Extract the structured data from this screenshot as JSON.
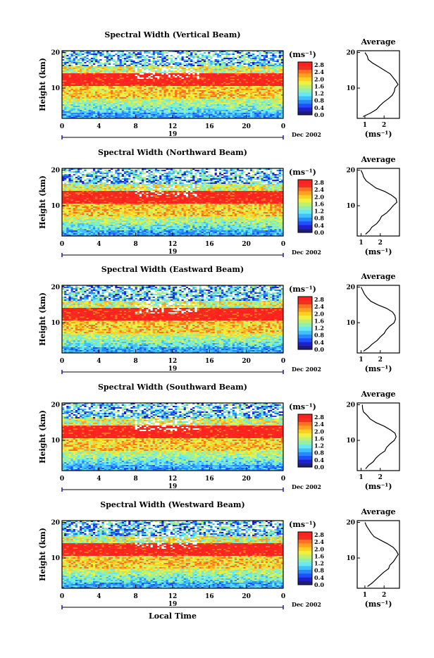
{
  "colorbar": {
    "unit_label": "(ms⁻¹)",
    "ticks": [
      "2.8",
      "2.4",
      "2.0",
      "1.6",
      "1.2",
      "0.8",
      "0.4",
      "0.0"
    ],
    "colors": [
      "#1e1e78",
      "#2020c8",
      "#1e50ff",
      "#2888ff",
      "#40c0ff",
      "#68e8f0",
      "#90f0b0",
      "#c0f070",
      "#f0f040",
      "#ffd020",
      "#ffa020",
      "#ff7020",
      "#f03020",
      "#ff2020"
    ]
  },
  "x_axis": {
    "ticks": [
      "0",
      "4",
      "8",
      "12",
      "16",
      "20",
      "0"
    ],
    "day_label": "19",
    "month_label": "Dec 2002",
    "xlabel": "Local Time"
  },
  "y_axis": {
    "ylabel": "Height (km)",
    "ticks": [
      "20",
      "10"
    ]
  },
  "profile": {
    "title": "Average",
    "xlabel": "(ms⁻¹)",
    "x_ticks": [
      "1",
      "2"
    ],
    "y_ticks": [
      "20",
      "10"
    ]
  },
  "chart_data": [
    {
      "type": "heatmap",
      "title": "Spectral Width (Vertical Beam)",
      "xlim": [
        0,
        24
      ],
      "ylim": [
        1.5,
        20.5
      ],
      "profile": {
        "type": "line",
        "xlim": [
          0.6,
          2.8
        ],
        "ylim": [
          1.5,
          20.5
        ],
        "y": [
          2,
          3,
          4,
          5,
          6,
          7,
          8,
          9,
          10,
          11,
          12,
          13,
          14,
          15,
          16,
          17,
          18,
          19,
          20
        ],
        "x": [
          0.9,
          1.3,
          1.6,
          1.8,
          2.0,
          2.2,
          2.4,
          2.5,
          2.6,
          2.7,
          2.65,
          2.5,
          2.3,
          2.0,
          1.7,
          1.4,
          1.2,
          1.1,
          1.0
        ]
      }
    },
    {
      "type": "heatmap",
      "title": "Spectral Width (Northward Beam)",
      "xlim": [
        0,
        24
      ],
      "ylim": [
        1.5,
        20.5
      ],
      "profile": {
        "type": "line",
        "xlim": [
          0.8,
          3.0
        ],
        "ylim": [
          1.5,
          20.5
        ],
        "y": [
          2,
          3,
          4,
          5,
          6,
          7,
          8,
          9,
          10,
          11,
          12,
          13,
          14,
          15,
          16,
          17,
          18,
          19,
          20
        ],
        "x": [
          1.2,
          1.4,
          1.6,
          1.8,
          2.0,
          2.1,
          2.3,
          2.5,
          2.7,
          2.85,
          2.8,
          2.6,
          2.2,
          1.8,
          1.5,
          1.3,
          1.15,
          1.1,
          1.0
        ]
      }
    },
    {
      "type": "heatmap",
      "title": "Spectral Width (Eastward Beam)",
      "xlim": [
        0,
        24
      ],
      "ylim": [
        1.5,
        20.5
      ],
      "profile": {
        "type": "line",
        "xlim": [
          0.8,
          3.0
        ],
        "ylim": [
          1.5,
          20.5
        ],
        "y": [
          2,
          3,
          4,
          5,
          6,
          7,
          8,
          9,
          10,
          11,
          12,
          13,
          14,
          15,
          16,
          17,
          18,
          19,
          20
        ],
        "x": [
          1.1,
          1.4,
          1.6,
          1.8,
          2.0,
          2.2,
          2.3,
          2.5,
          2.7,
          2.8,
          2.75,
          2.6,
          2.3,
          1.9,
          1.5,
          1.3,
          1.15,
          1.1,
          1.0
        ]
      }
    },
    {
      "type": "heatmap",
      "title": "Spectral Width (Southward Beam)",
      "xlim": [
        0,
        24
      ],
      "ylim": [
        1.5,
        20.5
      ],
      "profile": {
        "type": "line",
        "xlim": [
          0.8,
          3.0
        ],
        "ylim": [
          1.5,
          20.5
        ],
        "y": [
          2,
          3,
          4,
          5,
          6,
          7,
          8,
          9,
          10,
          11,
          12,
          13,
          14,
          15,
          16,
          17,
          18,
          19,
          20
        ],
        "x": [
          1.2,
          1.4,
          1.6,
          1.8,
          2.0,
          2.2,
          2.3,
          2.5,
          2.7,
          2.8,
          2.75,
          2.55,
          2.2,
          1.8,
          1.5,
          1.3,
          1.15,
          1.1,
          1.05
        ]
      }
    },
    {
      "type": "heatmap",
      "title": "Spectral Width (Westward Beam)",
      "xlim": [
        0,
        24
      ],
      "ylim": [
        1.5,
        20.5
      ],
      "profile": {
        "type": "line",
        "xlim": [
          0.6,
          2.8
        ],
        "ylim": [
          1.5,
          20.5
        ],
        "y": [
          2,
          3,
          4,
          5,
          6,
          7,
          8,
          9,
          10,
          11,
          12,
          13,
          14,
          15,
          16,
          17,
          18,
          19,
          20
        ],
        "x": [
          1.1,
          1.4,
          1.6,
          1.8,
          2.0,
          2.2,
          2.3,
          2.5,
          2.6,
          2.7,
          2.65,
          2.5,
          2.2,
          1.8,
          1.5,
          1.3,
          1.2,
          1.1,
          1.0
        ]
      }
    }
  ]
}
